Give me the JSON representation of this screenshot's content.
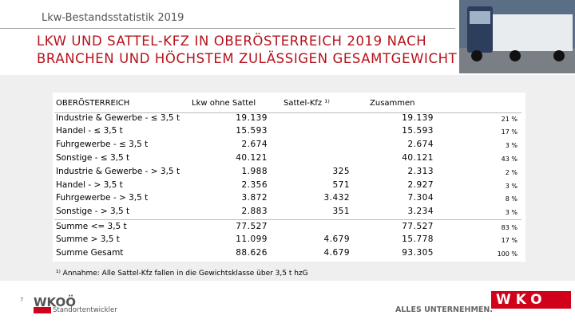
{
  "header": {
    "subtitle": "Lkw-Bestandsstatistik 2019",
    "title_lines": [
      "LKW UND SATTEL-KFZ IN OBERÖSTERREICH 2019 NACH",
      "BRANCHEN UND HÖCHSTEM ZULÄSSIGEN GESAMTGEWICHT"
    ]
  },
  "table": {
    "columns": [
      "OBERÖSTERREICH",
      "Lkw ohne Sattel",
      "Sattel-Kfz ¹⁾",
      "Zusammen"
    ],
    "rows": [
      {
        "label": "Industrie & Gewerbe - ≤ 3,5 t",
        "lkw": "19.139",
        "total": "19.139",
        "share": "21 %"
      },
      {
        "label": "Handel - ≤ 3,5 t",
        "lkw": "15.593",
        "total": "15.593",
        "share": "17 %"
      },
      {
        "label": "Fuhrgewerbe - ≤ 3,5 t",
        "lkw": "2.674",
        "total": "2.674",
        "share": "3 %"
      },
      {
        "label": "Sonstige - ≤ 3,5 t",
        "lkw": "40.121",
        "total": "40.121",
        "share": "43 %"
      },
      {
        "label": "Industrie & Gewerbe - > 3,5 t",
        "lkw": "1.988",
        "sattel": "325",
        "total": "2.313",
        "share": "2 %"
      },
      {
        "label": "Handel - > 3,5 t",
        "lkw": "2.356",
        "sattel": "571",
        "total": "2.927",
        "share": "3 %"
      },
      {
        "label": "Fuhrgewerbe - > 3,5 t",
        "lkw": "3.872",
        "sattel": "3.432",
        "total": "7.304",
        "share": "8 %"
      },
      {
        "label": "Sonstige - > 3,5 t",
        "lkw": "2.883",
        "sattel": "351",
        "total": "3.234",
        "share": "3 %"
      },
      {
        "label": "Summe <= 3,5 t",
        "lkw": "77.527",
        "total": "77.527",
        "share": "83 %"
      },
      {
        "label": "Summe > 3,5 t",
        "lkw": "11.099",
        "sattel": "4.679",
        "total": "15.778",
        "share": "17 %"
      },
      {
        "label": "Summe Gesamt",
        "lkw": "88.626",
        "sattel": "4.679",
        "total": "93.305",
        "share": "100 %"
      }
    ]
  },
  "footnote": "¹⁾ Annahme: Alle Sattel-Kfz fallen in die Gewichtsklasse über 3,5 t hzG",
  "footer": {
    "page": "7",
    "logo_left": "WKOÖ",
    "logo_left_sub": "Standortentwickler",
    "slogan": "ALLES UNTERNEHMEN.",
    "logo_right": "WKO"
  }
}
